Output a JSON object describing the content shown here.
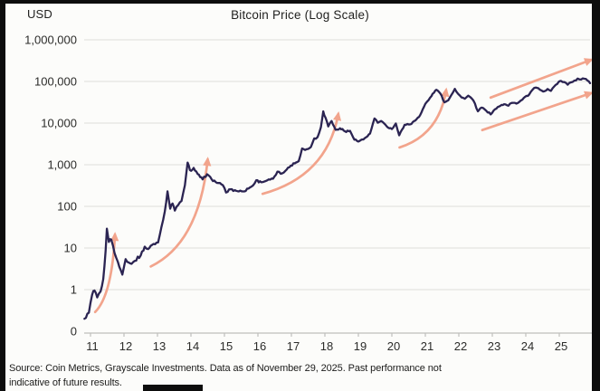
{
  "header": {
    "currency_label": "USD",
    "title": "Bitcoin Price (Log Scale)"
  },
  "chart_data": {
    "type": "line",
    "title": "Bitcoin Price (Log Scale)",
    "ylabel": "USD",
    "xlabel": "",
    "y_scale": "log",
    "grid": "horizontal",
    "legend": "none",
    "x_unit": "year 20xx",
    "y_ticks": [
      {
        "label": "1,000,000",
        "value": 1000000
      },
      {
        "label": "100,000",
        "value": 100000
      },
      {
        "label": "10,000",
        "value": 10000
      },
      {
        "label": "1,000",
        "value": 1000
      },
      {
        "label": "100",
        "value": 100
      },
      {
        "label": "10",
        "value": 10
      },
      {
        "label": "1",
        "value": 1
      },
      {
        "label": "0",
        "value": 0
      }
    ],
    "x_ticks": [
      {
        "label": "11",
        "year": 2011
      },
      {
        "label": "12",
        "year": 2012
      },
      {
        "label": "13",
        "year": 2013
      },
      {
        "label": "14",
        "year": 2014
      },
      {
        "label": "15",
        "year": 2015
      },
      {
        "label": "16",
        "year": 2016
      },
      {
        "label": "17",
        "year": 2017
      },
      {
        "label": "18",
        "year": 2018
      },
      {
        "label": "19",
        "year": 2019
      },
      {
        "label": "20",
        "year": 2020
      },
      {
        "label": "21",
        "year": 2021
      },
      {
        "label": "22",
        "year": 2022
      },
      {
        "label": "23",
        "year": 2023
      },
      {
        "label": "24",
        "year": 2024
      },
      {
        "label": "25",
        "year": 2025
      }
    ],
    "series": [
      {
        "name": "Bitcoin price (USD)",
        "points": [
          [
            2010.82,
            0.2
          ],
          [
            2010.95,
            0.28
          ],
          [
            2011.05,
            0.75
          ],
          [
            2011.12,
            0.95
          ],
          [
            2011.2,
            0.65
          ],
          [
            2011.3,
            0.9
          ],
          [
            2011.38,
            1.8
          ],
          [
            2011.45,
            8.5
          ],
          [
            2011.49,
            29
          ],
          [
            2011.55,
            14
          ],
          [
            2011.62,
            16
          ],
          [
            2011.72,
            7.5
          ],
          [
            2011.82,
            4.6
          ],
          [
            2011.95,
            2.3
          ],
          [
            2012.05,
            5.4
          ],
          [
            2012.18,
            4.3
          ],
          [
            2012.32,
            4.9
          ],
          [
            2012.5,
            6.6
          ],
          [
            2012.62,
            10.8
          ],
          [
            2012.72,
            9.4
          ],
          [
            2012.88,
            12.5
          ],
          [
            2013.02,
            13.6
          ],
          [
            2013.12,
            32
          ],
          [
            2013.22,
            75
          ],
          [
            2013.3,
            230
          ],
          [
            2013.38,
            88
          ],
          [
            2013.45,
            117
          ],
          [
            2013.52,
            79
          ],
          [
            2013.62,
            108
          ],
          [
            2013.72,
            135
          ],
          [
            2013.82,
            320
          ],
          [
            2013.9,
            1130
          ],
          [
            2013.97,
            740
          ],
          [
            2014.08,
            840
          ],
          [
            2014.2,
            600
          ],
          [
            2014.35,
            445
          ],
          [
            2014.48,
            590
          ],
          [
            2014.62,
            445
          ],
          [
            2014.78,
            365
          ],
          [
            2014.95,
            325
          ],
          [
            2015.05,
            215
          ],
          [
            2015.18,
            258
          ],
          [
            2015.35,
            237
          ],
          [
            2015.55,
            228
          ],
          [
            2015.72,
            268
          ],
          [
            2015.85,
            315
          ],
          [
            2015.95,
            425
          ],
          [
            2016.1,
            378
          ],
          [
            2016.28,
            422
          ],
          [
            2016.45,
            460
          ],
          [
            2016.58,
            680
          ],
          [
            2016.68,
            605
          ],
          [
            2016.82,
            710
          ],
          [
            2016.98,
            950
          ],
          [
            2017.1,
            1080
          ],
          [
            2017.22,
            1220
          ],
          [
            2017.32,
            2450
          ],
          [
            2017.45,
            2350
          ],
          [
            2017.58,
            2650
          ],
          [
            2017.68,
            4300
          ],
          [
            2017.78,
            4600
          ],
          [
            2017.88,
            8000
          ],
          [
            2017.95,
            19200
          ],
          [
            2018.02,
            13500
          ],
          [
            2018.1,
            8300
          ],
          [
            2018.2,
            11200
          ],
          [
            2018.32,
            6900
          ],
          [
            2018.45,
            7500
          ],
          [
            2018.6,
            6350
          ],
          [
            2018.75,
            6500
          ],
          [
            2018.88,
            4000
          ],
          [
            2019.0,
            3600
          ],
          [
            2019.15,
            4050
          ],
          [
            2019.35,
            5600
          ],
          [
            2019.48,
            12900
          ],
          [
            2019.58,
            10200
          ],
          [
            2019.68,
            11200
          ],
          [
            2019.85,
            8300
          ],
          [
            2020.0,
            7200
          ],
          [
            2020.12,
            9800
          ],
          [
            2020.22,
            5100
          ],
          [
            2020.38,
            9100
          ],
          [
            2020.55,
            9300
          ],
          [
            2020.7,
            11500
          ],
          [
            2020.85,
            15800
          ],
          [
            2021.0,
            29000
          ],
          [
            2021.1,
            36000
          ],
          [
            2021.22,
            51000
          ],
          [
            2021.33,
            63000
          ],
          [
            2021.45,
            51000
          ],
          [
            2021.57,
            31500
          ],
          [
            2021.68,
            35000
          ],
          [
            2021.78,
            48000
          ],
          [
            2021.88,
            66500
          ],
          [
            2021.98,
            50000
          ],
          [
            2022.08,
            41500
          ],
          [
            2022.18,
            38500
          ],
          [
            2022.28,
            45500
          ],
          [
            2022.38,
            39500
          ],
          [
            2022.48,
            29500
          ],
          [
            2022.57,
            19200
          ],
          [
            2022.68,
            23500
          ],
          [
            2022.82,
            19800
          ],
          [
            2022.95,
            16200
          ],
          [
            2023.08,
            21500
          ],
          [
            2023.2,
            25000
          ],
          [
            2023.35,
            28500
          ],
          [
            2023.48,
            26200
          ],
          [
            2023.58,
            30600
          ],
          [
            2023.72,
            29300
          ],
          [
            2023.85,
            34800
          ],
          [
            2023.98,
            43000
          ],
          [
            2024.1,
            48500
          ],
          [
            2024.2,
            63000
          ],
          [
            2024.3,
            71500
          ],
          [
            2024.42,
            63500
          ],
          [
            2024.52,
            57500
          ],
          [
            2024.65,
            66000
          ],
          [
            2024.75,
            59500
          ],
          [
            2024.85,
            76000
          ],
          [
            2024.98,
            97500
          ],
          [
            2025.05,
            103000
          ],
          [
            2025.15,
            96500
          ],
          [
            2025.25,
            83500
          ],
          [
            2025.35,
            95000
          ],
          [
            2025.45,
            105000
          ],
          [
            2025.55,
            117500
          ],
          [
            2025.65,
            111000
          ],
          [
            2025.75,
            116000
          ],
          [
            2025.83,
            107000
          ],
          [
            2025.89,
            99000
          ],
          [
            2025.92,
            91000
          ]
        ]
      }
    ],
    "annotations": [
      {
        "kind": "arrow",
        "shape": "curved",
        "from": [
          2011.14,
          0.29
        ],
        "to": [
          2011.73,
          21
        ]
      },
      {
        "kind": "arrow",
        "shape": "curved",
        "from": [
          2012.8,
          3.6
        ],
        "to": [
          2014.5,
          1340
        ]
      },
      {
        "kind": "arrow",
        "shape": "curved",
        "from": [
          2016.14,
          200
        ],
        "to": [
          2018.4,
          16500
        ]
      },
      {
        "kind": "arrow",
        "shape": "curved",
        "from": [
          2020.23,
          2600
        ],
        "to": [
          2021.62,
          62000
        ]
      },
      {
        "kind": "arrow",
        "shape": "straight",
        "from": [
          2022.95,
          41000
        ],
        "to": [
          2025.95,
          330000
        ]
      },
      {
        "kind": "arrow",
        "shape": "straight",
        "from": [
          2022.7,
          6800
        ],
        "to": [
          2025.95,
          52500
        ]
      }
    ]
  },
  "footer": {
    "source_line1": "Source: Coin Metrics, Grayscale Investments. Data as of November 29, 2025. Past performance not",
    "source_line2": "indicative of future results."
  },
  "colors": {
    "price_line": "#2b2452",
    "trend_arrow": "#f2a48c",
    "gridline": "#e4e4e1",
    "axis": "#bfbfbc",
    "tick_text": "#2c2c2a",
    "background": "#fcfcfa",
    "frame": "#0d0d0d"
  }
}
